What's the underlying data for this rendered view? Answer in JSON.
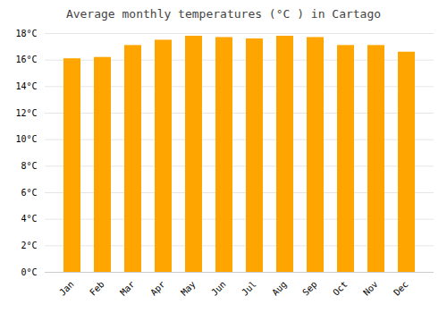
{
  "chart_data": {
    "type": "bar",
    "title": "Average monthly temperatures (°C ) in Cartago",
    "categories": [
      "Jan",
      "Feb",
      "Mar",
      "Apr",
      "May",
      "Jun",
      "Jul",
      "Aug",
      "Sep",
      "Oct",
      "Nov",
      "Dec"
    ],
    "values": [
      16.1,
      16.2,
      17.1,
      17.5,
      17.8,
      17.7,
      17.6,
      17.8,
      17.7,
      17.1,
      17.1,
      16.6
    ],
    "color": "#FFA500",
    "ylim": [
      0,
      18
    ],
    "yticks": [
      {
        "value": 0,
        "label": "0°C"
      },
      {
        "value": 2,
        "label": "2°C"
      },
      {
        "value": 4,
        "label": "4°C"
      },
      {
        "value": 6,
        "label": "6°C"
      },
      {
        "value": 8,
        "label": "8°C"
      },
      {
        "value": 10,
        "label": "10°C"
      },
      {
        "value": 12,
        "label": "12°C"
      },
      {
        "value": 14,
        "label": "14°C"
      },
      {
        "value": 16,
        "label": "16°C"
      },
      {
        "value": 18,
        "label": "18°C"
      }
    ],
    "grid": true
  }
}
